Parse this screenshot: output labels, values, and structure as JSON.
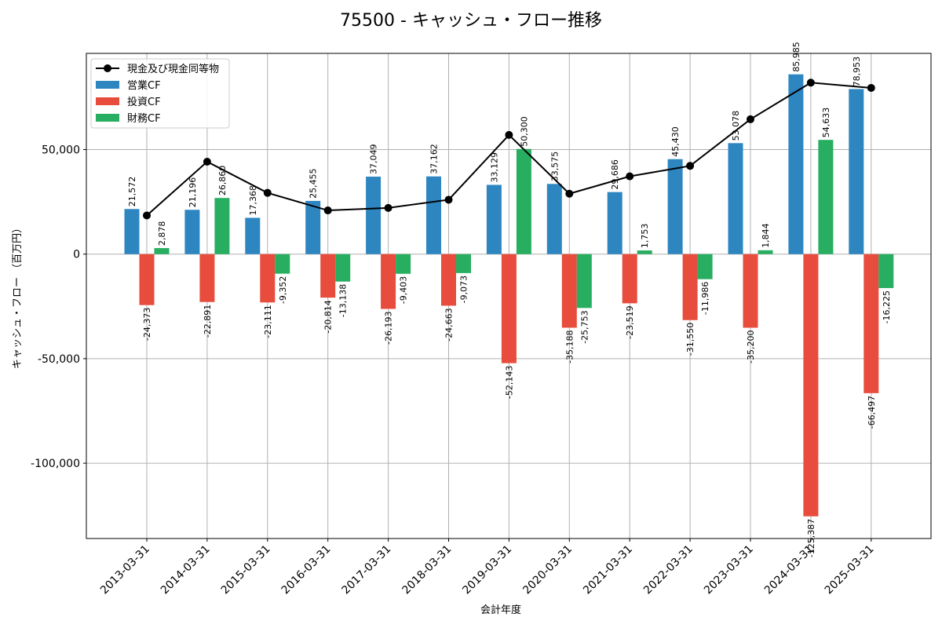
{
  "chart_data": {
    "type": "bar",
    "title": "75500 - キャッシュ・フロー推移",
    "xlabel": "会計年度",
    "ylabel": "キャッシュ・フロー （百万円）",
    "ylim": [
      -136000,
      96000
    ],
    "yticks": [
      -100000,
      -50000,
      0,
      50000
    ],
    "ytick_labels": [
      "-100,000",
      "-50,000",
      "0",
      "50,000"
    ],
    "grid": true,
    "legend_position": "top-left",
    "categories": [
      "2013-03-31",
      "2014-03-31",
      "2015-03-31",
      "2016-03-31",
      "2017-03-31",
      "2018-03-31",
      "2019-03-31",
      "2020-03-31",
      "2021-03-31",
      "2022-03-31",
      "2023-03-31",
      "2024-03-31",
      "2025-03-31"
    ],
    "series": [
      {
        "name": "営業CF",
        "kind": "bar",
        "color": "#2e86c1",
        "values": [
          21572,
          21196,
          17368,
          25455,
          37049,
          37162,
          33129,
          33575,
          29686,
          45430,
          53078,
          85985,
          78953
        ],
        "labels": [
          "21,572",
          "21,196",
          "17,368",
          "25,455",
          "37,049",
          "37,162",
          "33,129",
          "33,575",
          "29,686",
          "45,430",
          "53,078",
          "85,985",
          "78,953"
        ]
      },
      {
        "name": "投資CF",
        "kind": "bar",
        "color": "#e74c3c",
        "values": [
          -24373,
          -22891,
          -23111,
          -20814,
          -26193,
          -24663,
          -52143,
          -35188,
          -23519,
          -31550,
          -35200,
          -125387,
          -66497
        ],
        "labels": [
          "-24,373",
          "-22,891",
          "-23,111",
          "-20,814",
          "-26,193",
          "-24,663",
          "-52,143",
          "-35,188",
          "-23,519",
          "-31,550",
          "-35,200",
          "-125,387",
          "-66,497"
        ]
      },
      {
        "name": "財務CF",
        "kind": "bar",
        "color": "#27ae60",
        "values": [
          2878,
          26860,
          -9352,
          -13138,
          -9403,
          -9073,
          50300,
          -25753,
          1753,
          -11986,
          1844,
          54633,
          -16225
        ],
        "labels": [
          "2,878",
          "26,860",
          "-9,352",
          "-13,138",
          "-9,403",
          "-9,073",
          "50,300",
          "-25,753",
          "1,753",
          "-11,986",
          "1,844",
          "54,633",
          "-16,225"
        ]
      },
      {
        "name": "現金及び現金同等物",
        "kind": "line",
        "color": "#000000",
        "values": [
          18500,
          44200,
          29300,
          20900,
          22100,
          26000,
          57000,
          28900,
          37200,
          42200,
          64500,
          82000,
          79500
        ]
      }
    ]
  }
}
